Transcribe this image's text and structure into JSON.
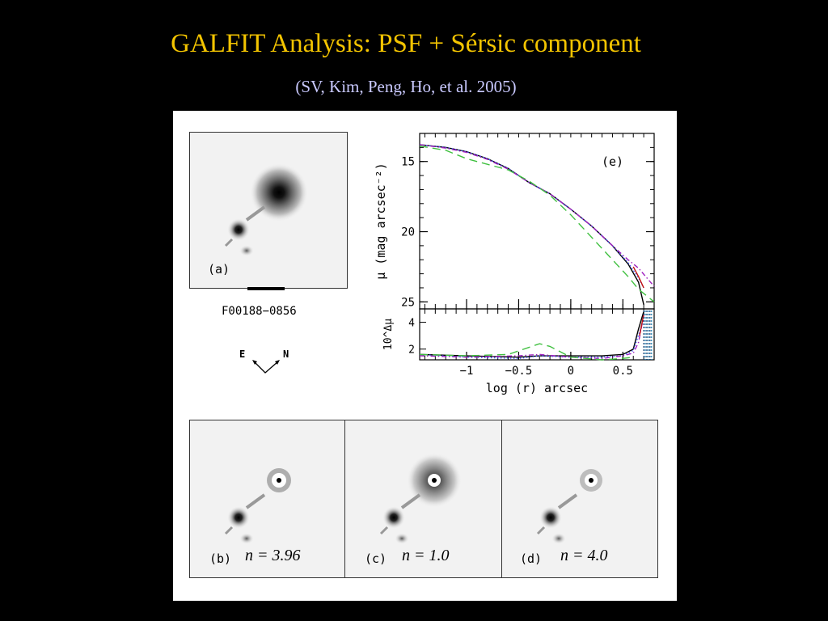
{
  "slide": {
    "title": "GALFIT Analysis: PSF + Sérsic component",
    "subtitle": "(SV, Kim, Peng, Ho, et al. 2005)"
  },
  "figure": {
    "target_name": "F00188−0856",
    "compass": {
      "east": "E",
      "north": "N"
    },
    "panels": {
      "a": {
        "label": "(a)"
      },
      "b": {
        "label": "(b)",
        "n_text": "n = 3.96",
        "sersic_n": 3.96
      },
      "c": {
        "label": "(c)",
        "n_text": "n = 1.0",
        "sersic_n": 1.0
      },
      "d": {
        "label": "(d)",
        "n_text": "n = 4.0",
        "sersic_n": 4.0
      },
      "e": {
        "label": "(e)"
      }
    }
  },
  "chart_data": {
    "type": "line",
    "panel_label": "(e)",
    "xlabel": "log (r) arcsec",
    "ylabel": "μ (mag arcsec⁻²)",
    "residual_ylabel": "10^Δμ",
    "xlim": [
      -1.45,
      0.8
    ],
    "ylim": [
      25.5,
      13.0
    ],
    "residual_ylim": [
      1.2,
      5.0
    ],
    "x_ticks": [
      -1,
      -0.5,
      0,
      0.5
    ],
    "x_tick_labels": [
      "−1",
      "−0.5",
      "0",
      "0.5"
    ],
    "y_ticks": [
      15,
      20,
      25
    ],
    "y_tick_labels": [
      "15",
      "20",
      "25"
    ],
    "residual_ticks": [
      2,
      4
    ],
    "residual_tick_labels": [
      "2",
      "4"
    ],
    "series": [
      {
        "color": "#000000",
        "style": "solid",
        "x": [
          -1.45,
          -1.2,
          -1.0,
          -0.8,
          -0.6,
          -0.4,
          -0.2,
          0.0,
          0.2,
          0.4,
          0.55,
          0.65,
          0.7
        ],
        "y": [
          13.8,
          14.0,
          14.3,
          14.8,
          15.5,
          16.5,
          17.3,
          18.4,
          19.6,
          21.0,
          22.3,
          23.6,
          25.2
        ]
      },
      {
        "color": "#3a55ff",
        "style": "dotted",
        "x": [
          -1.45,
          -1.2,
          -1.0,
          -0.8,
          -0.6,
          -0.4,
          -0.2,
          0.0,
          0.2,
          0.4,
          0.55,
          0.65,
          0.7
        ],
        "y": [
          13.8,
          14.0,
          14.3,
          14.8,
          15.5,
          16.5,
          17.3,
          18.4,
          19.6,
          21.0,
          22.2,
          23.3,
          24.0
        ]
      },
      {
        "color": "#a020c0",
        "style": "dashdot",
        "x": [
          -1.45,
          -1.2,
          -1.0,
          -0.8,
          -0.6,
          -0.4,
          -0.2,
          0.0,
          0.2,
          0.4,
          0.55,
          0.65,
          0.8
        ],
        "y": [
          13.8,
          14.05,
          14.35,
          14.85,
          15.55,
          16.5,
          17.3,
          18.4,
          19.6,
          21.0,
          22.0,
          22.6,
          23.9
        ]
      },
      {
        "color": "#c01010",
        "style": "solid",
        "x": [
          0.6,
          0.65,
          0.7
        ],
        "y": [
          22.5,
          23.2,
          24.0
        ]
      },
      {
        "color": "#40c040",
        "style": "dashed",
        "x": [
          -1.45,
          -1.2,
          -1.0,
          -0.8,
          -0.6,
          -0.4,
          -0.2,
          0.0,
          0.2,
          0.4,
          0.55,
          0.65,
          0.8
        ],
        "y": [
          13.9,
          14.2,
          14.8,
          15.2,
          15.6,
          16.4,
          17.4,
          18.8,
          20.4,
          22.0,
          23.2,
          24.1,
          25.0
        ]
      }
    ],
    "residual_series": [
      {
        "color": "#000000",
        "style": "solid",
        "x": [
          -1.45,
          -1.0,
          -0.5,
          -0.3,
          0.0,
          0.3,
          0.5,
          0.6,
          0.65,
          0.7
        ],
        "y": [
          1.6,
          1.5,
          1.4,
          1.5,
          1.5,
          1.5,
          1.6,
          2.0,
          3.5,
          4.8
        ]
      },
      {
        "color": "#3a55ff",
        "style": "dotted",
        "x": [
          -1.45,
          -1.0,
          -0.5,
          -0.3,
          0.0,
          0.3,
          0.5,
          0.6,
          0.7
        ],
        "y": [
          1.6,
          1.4,
          1.3,
          1.5,
          1.4,
          1.4,
          1.5,
          1.9,
          4.2
        ]
      },
      {
        "color": "#a020c0",
        "style": "dashdot",
        "x": [
          -1.45,
          -1.0,
          -0.5,
          -0.3,
          0.0,
          0.3,
          0.5,
          0.6,
          0.65,
          0.7
        ],
        "y": [
          1.5,
          1.4,
          1.5,
          1.6,
          1.4,
          1.3,
          1.5,
          1.7,
          2.5,
          4.5
        ]
      },
      {
        "color": "#c01010",
        "style": "solid",
        "x": [
          0.66,
          0.68,
          0.7
        ],
        "y": [
          3.0,
          3.8,
          4.6
        ]
      },
      {
        "color": "#40c040",
        "style": "dashed",
        "x": [
          -1.45,
          -1.0,
          -0.6,
          -0.3,
          -0.2,
          0.0,
          0.3,
          0.5,
          0.6
        ],
        "y": [
          1.6,
          1.5,
          1.6,
          2.4,
          2.2,
          1.4,
          1.2,
          1.3,
          1.4
        ]
      }
    ]
  }
}
